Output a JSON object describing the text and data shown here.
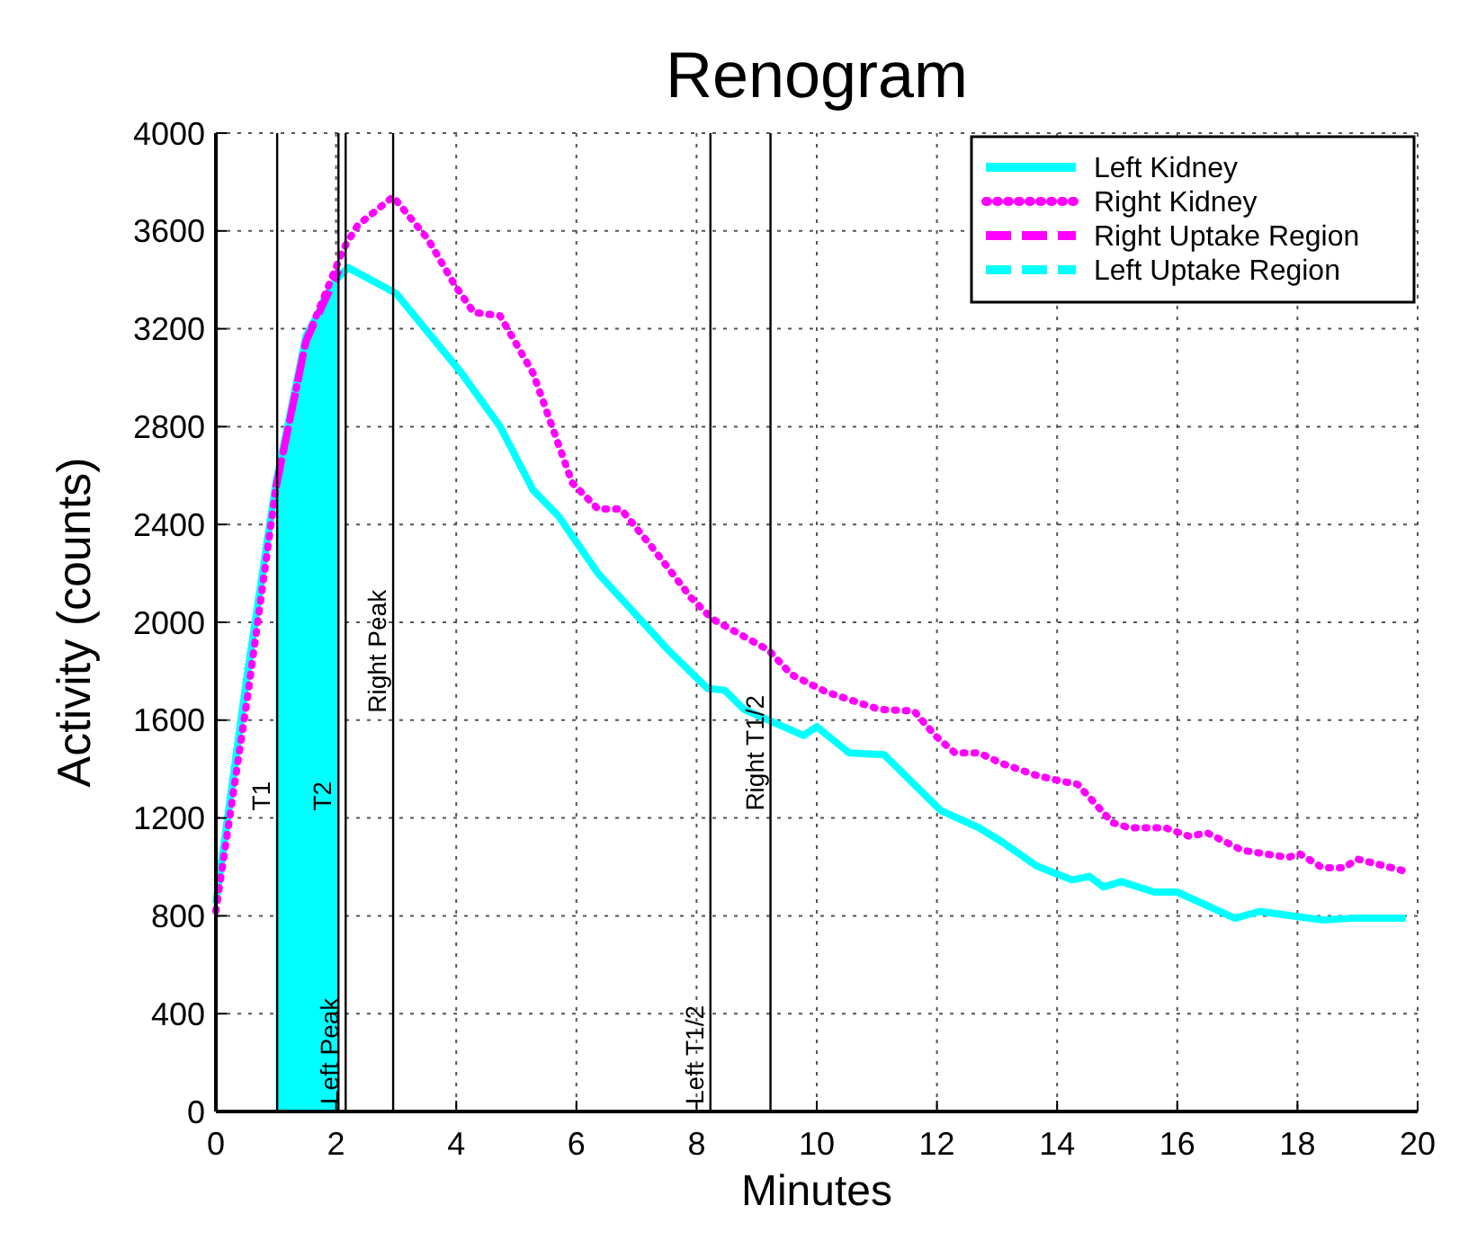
{
  "chart_data": {
    "type": "line",
    "title": "Renogram",
    "xlabel": "Minutes",
    "ylabel": "Activity (counts)",
    "xlim": [
      0,
      20
    ],
    "xticks": [
      0,
      2,
      4,
      6,
      8,
      10,
      12,
      14,
      16,
      18,
      20
    ],
    "ylim": [
      0,
      4000
    ],
    "yticks": [
      0,
      400,
      800,
      1200,
      1600,
      2000,
      2400,
      2800,
      3200,
      3600,
      4000
    ],
    "grid": true,
    "legend": "top right",
    "series": [
      {
        "name": "Left Kidney",
        "color": "#00ffff",
        "line_style": "solid",
        "x": [
          0,
          0.5,
          1.0,
          1.5,
          2.0,
          2.2,
          3.0,
          4.09,
          4.73,
          5.28,
          5.7,
          6.36,
          6.66,
          7.53,
          8.18,
          8.47,
          8.79,
          9.2,
          9.78,
          10.0,
          10.54,
          11.12,
          12.06,
          12.7,
          13.08,
          13.66,
          14.25,
          14.54,
          14.77,
          15.07,
          15.62,
          16.0,
          16.96,
          17.37,
          18.42,
          18.92,
          19.8
        ],
        "values": [
          850,
          1750,
          2570,
          3170,
          3400,
          3450,
          3345,
          3018,
          2800,
          2540,
          2435,
          2200,
          2120,
          1886,
          1730,
          1722,
          1644,
          1600,
          1537,
          1573,
          1466,
          1459,
          1231,
          1160,
          1103,
          1004,
          947,
          961,
          918,
          940,
          897,
          897,
          790,
          818,
          783,
          790,
          790
        ]
      },
      {
        "name": "Right Kidney",
        "color": "#ff00ff",
        "line_style": "dotted",
        "x": [
          0,
          0.53,
          1.0,
          1.5,
          2.13,
          2.36,
          2.95,
          3.53,
          3.97,
          4.29,
          4.73,
          5.28,
          5.93,
          6.36,
          6.74,
          7.24,
          7.91,
          8.26,
          9.2,
          9.58,
          10.16,
          11.04,
          11.62,
          11.97,
          12.3,
          12.7,
          13.08,
          13.66,
          14.04,
          14.34,
          14.92,
          15.2,
          15.8,
          16.2,
          16.5,
          17.08,
          17.84,
          18.04,
          18.42,
          18.77,
          19.0,
          19.8
        ],
        "values": [
          820,
          1700,
          2550,
          3150,
          3530,
          3623,
          3740,
          3566,
          3381,
          3267,
          3253,
          3018,
          2570,
          2463,
          2463,
          2313,
          2100,
          2014,
          1886,
          1786,
          1715,
          1644,
          1637,
          1537,
          1466,
          1466,
          1423,
          1374,
          1352,
          1338,
          1181,
          1160,
          1160,
          1125,
          1139,
          1068,
          1039,
          1053,
          996,
          996,
          1032,
          982
        ]
      },
      {
        "name": "Right Uptake Region",
        "color": "#ff00ff",
        "line_style": "dashed",
        "x": [
          1.0,
          1.5,
          2.05
        ],
        "values": [
          2550,
          3150,
          3440
        ]
      },
      {
        "name": "Left Uptake Region",
        "type": "area",
        "color": "#00ffff",
        "line_style": "dashed",
        "x": [
          1.0,
          1.25,
          1.5,
          1.75,
          2.05
        ],
        "values": [
          2550,
          2900,
          3170,
          3330,
          3430
        ]
      }
    ],
    "ref_lines": [
      {
        "axis": "x",
        "value": 1.02,
        "label": "T1",
        "color": "#000000"
      },
      {
        "axis": "x",
        "value": 2.04,
        "label": "T2",
        "color": "#000000"
      },
      {
        "axis": "x",
        "value": 2.16,
        "label": "Left Peak",
        "color": "#000000"
      },
      {
        "axis": "x",
        "value": 2.95,
        "label": "Right Peak",
        "color": "#000000"
      },
      {
        "axis": "x",
        "value": 8.23,
        "label": "Left T1/2",
        "color": "#000000"
      },
      {
        "axis": "x",
        "value": 9.23,
        "label": "Right T1/2",
        "color": "#000000"
      }
    ]
  }
}
